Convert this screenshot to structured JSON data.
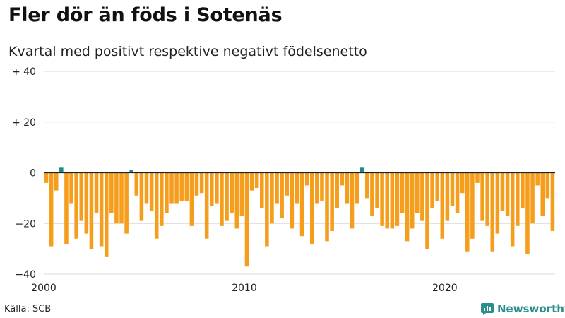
{
  "header": {
    "title": "Fler dör än föds i Sotenäs",
    "subtitle": "Kvartal med positivt respektive negativt födelsenetto"
  },
  "footer": {
    "source": "Källa: SCB",
    "brand": "Newsworthy",
    "brand_icon": "newsworthy-chart-icon"
  },
  "chart_data": {
    "type": "bar",
    "title": "Fler dör än föds i Sotenäs",
    "subtitle": "Kvartal med positivt respektive negativt födelsenetto",
    "xlabel": "",
    "ylabel": "",
    "ylim": [
      -40,
      40
    ],
    "yticks": [
      {
        "value": 40,
        "label": "+ 40"
      },
      {
        "value": 20,
        "label": "+ 20"
      },
      {
        "value": 0,
        "label": "0"
      },
      {
        "value": -20,
        "label": "−20"
      },
      {
        "value": -40,
        "label": "−40"
      }
    ],
    "xticks": [
      {
        "value": 2000,
        "label": "2000"
      },
      {
        "value": 2010,
        "label": "2010"
      },
      {
        "value": 2020,
        "label": "2020"
      }
    ],
    "start_year": 2000,
    "periods_per_year": 4,
    "grid": true,
    "colors": {
      "positive": "#1f8a84",
      "negative": "#f59d1c"
    },
    "values": [
      -4,
      -29,
      -7,
      2,
      -28,
      -12,
      -26,
      -19,
      -24,
      -30,
      -16,
      -29,
      -33,
      -16,
      -20,
      -20,
      -24,
      1,
      -9,
      -19,
      -12,
      -15,
      -26,
      -21,
      -16,
      -12,
      -12,
      -11,
      -11,
      -21,
      -9,
      -8,
      -26,
      -13,
      -12,
      -21,
      -19,
      -16,
      -22,
      -17,
      -37,
      -7,
      -6,
      -14,
      -29,
      -20,
      -12,
      -18,
      -9,
      -22,
      -12,
      -25,
      -5,
      -28,
      -12,
      -11,
      -27,
      -23,
      -14,
      -5,
      -12,
      -22,
      -12,
      2,
      -10,
      -17,
      -14,
      -21,
      -22,
      -22,
      -21,
      -16,
      -27,
      -22,
      -16,
      -19,
      -30,
      -14,
      -11,
      -26,
      -19,
      -13,
      -16,
      -8,
      -31,
      -26,
      -4,
      -19,
      -21,
      -31,
      -24,
      -15,
      -17,
      -29,
      -21,
      -14,
      -32,
      -20,
      -5,
      -17,
      -10,
      -23
    ]
  }
}
